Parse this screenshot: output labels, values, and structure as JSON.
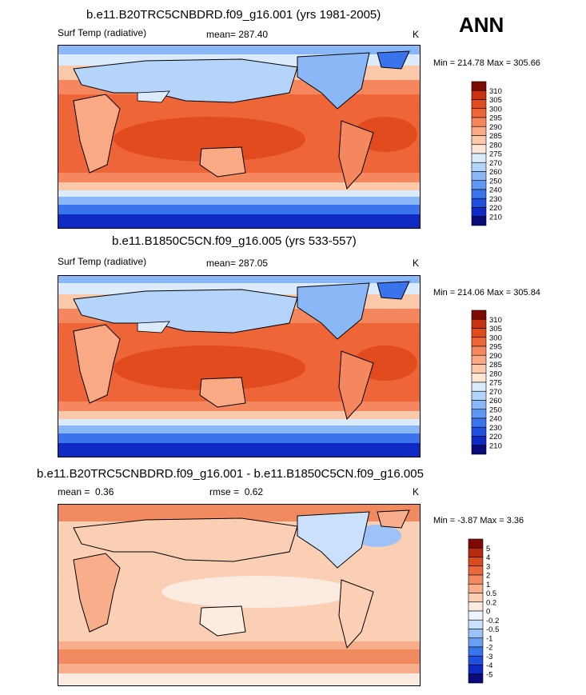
{
  "season": "ANN",
  "colors": {
    "abs": [
      "#0a0a78",
      "#0f2ac2",
      "#1e4fe0",
      "#3a74ec",
      "#5f98f2",
      "#8ab8f7",
      "#b4d4fa",
      "#dcebfc",
      "#fde6d6",
      "#fbc9a9",
      "#f9a983",
      "#f5875e",
      "#ee6538",
      "#e24b1e",
      "#c83212",
      "#7e0a06"
    ],
    "diff": [
      "#0a0a78",
      "#0f2ac2",
      "#1e4fe0",
      "#3a74ec",
      "#6a9ff2",
      "#9cc2f7",
      "#cbe0fa",
      "#eef4fd",
      "#fbebe0",
      "#fbcfb3",
      "#f8ae8a",
      "#f28a60",
      "#e9683a",
      "#d94b1f",
      "#b52c10",
      "#7e0a06"
    ]
  },
  "panels": [
    {
      "title": "b.e11.B20TRC5CNBDRD.f09_g16.001 (yrs 1981-2005)",
      "left_label": "Surf Temp (radiative)",
      "stat_label": "mean=",
      "stat_value": "287.40",
      "units": "K",
      "minmax": "Min = 214.78 Max = 305.66"
    },
    {
      "title": "b.e11.B1850C5CN.f09_g16.005 (yrs 533-557)",
      "left_label": "Surf Temp (radiative)",
      "stat_label": "mean=",
      "stat_value": "287.05",
      "units": "K",
      "minmax": "Min = 214.06 Max = 305.84"
    },
    {
      "title": "b.e11.B20TRC5CNBDRD.f09_g16.001 - b.e11.B1850C5CN.f09_g16.005",
      "mean_label": "mean =",
      "mean_value": "0.36",
      "rmse_label": "rmse =",
      "rmse_value": "0.62",
      "units": "K",
      "minmax": "Min =  -3.87 Max =   3.36"
    }
  ],
  "chart_data": [
    {
      "type": "heatmap",
      "title": "b.e11.B20TRC5CNBDRD.f09_g16.001 (yrs 1981-2005)",
      "variable": "Surf Temp (radiative)",
      "units": "K",
      "mean": 287.4,
      "min": 214.78,
      "max": 305.66,
      "colorbar_levels": [
        "310",
        "305",
        "300",
        "295",
        "290",
        "285",
        "280",
        "275",
        "270",
        "260",
        "250",
        "240",
        "230",
        "220",
        "210"
      ]
    },
    {
      "type": "heatmap",
      "title": "b.e11.B1850C5CN.f09_g16.005 (yrs 533-557)",
      "variable": "Surf Temp (radiative)",
      "units": "K",
      "mean": 287.05,
      "min": 214.06,
      "max": 305.84,
      "colorbar_levels": [
        "310",
        "305",
        "300",
        "295",
        "290",
        "285",
        "280",
        "275",
        "270",
        "260",
        "250",
        "240",
        "230",
        "220",
        "210"
      ]
    },
    {
      "type": "heatmap",
      "title": "b.e11.B20TRC5CNBDRD.f09_g16.001 - b.e11.B1850C5CN.f09_g16.005",
      "units": "K",
      "mean": 0.36,
      "rmse": 0.62,
      "min": -3.87,
      "max": 3.36,
      "colorbar_levels": [
        "5",
        "4",
        "3",
        "2",
        "1",
        "0.5",
        "0.2",
        "0",
        "-0.2",
        "-0.5",
        "-1",
        "-2",
        "-3",
        "-4",
        "-5"
      ]
    }
  ]
}
